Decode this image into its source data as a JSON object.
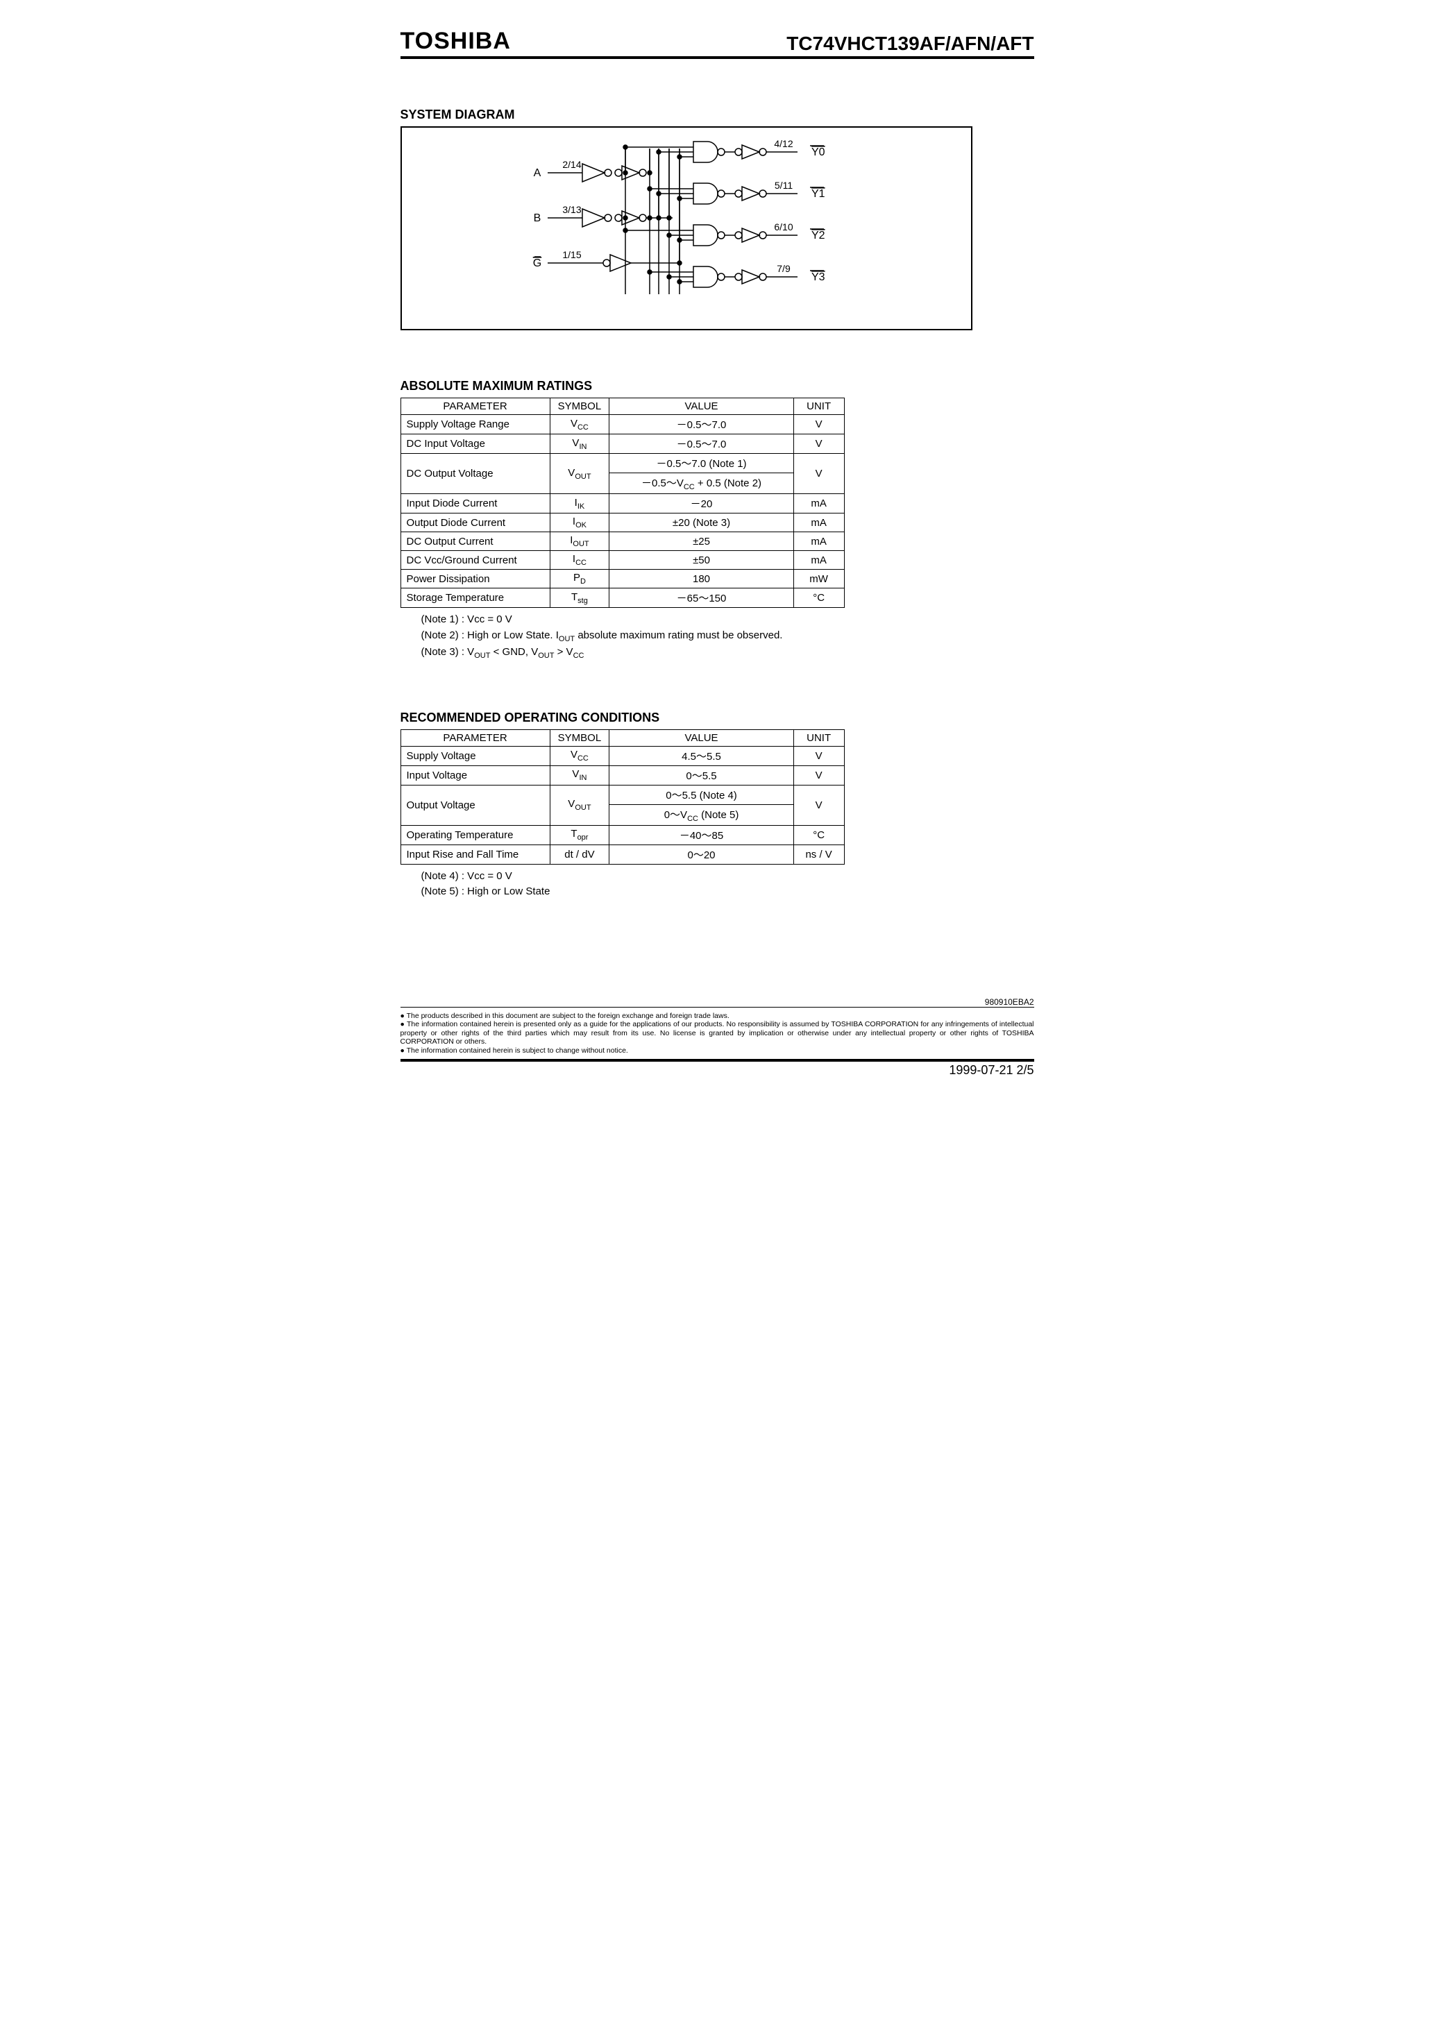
{
  "header": {
    "brand": "TOSHIBA",
    "part_number": "TC74VHCT139AF/AFN/AFT"
  },
  "diagram": {
    "title": "SYSTEM  DIAGRAM",
    "inputs": [
      {
        "label": "A",
        "pins": "2/14"
      },
      {
        "label": "B",
        "pins": "3/13"
      },
      {
        "label": "G",
        "overline": true,
        "pins": "1/15"
      }
    ],
    "outputs": [
      {
        "label": "Y0",
        "overline": true,
        "pins": "4/12"
      },
      {
        "label": "Y1",
        "overline": true,
        "pins": "5/11"
      },
      {
        "label": "Y2",
        "overline": true,
        "pins": "6/10"
      },
      {
        "label": "Y3",
        "overline": true,
        "pins": "7/9"
      }
    ]
  },
  "abs_max": {
    "title": "ABSOLUTE  MAXIMUM  RATINGS",
    "headers": {
      "parameter": "PARAMETER",
      "symbol": "SYMBOL",
      "value": "VALUE",
      "unit": "UNIT"
    },
    "rows": [
      {
        "param": "Supply Voltage Range",
        "sym": "V",
        "sub": "CC",
        "value": "－0.5～7.0",
        "unit": "V",
        "rowspan": 1
      },
      {
        "param": "DC Input Voltage",
        "sym": "V",
        "sub": "IN",
        "value": "－0.5～7.0",
        "unit": "V",
        "rowspan": 1
      },
      {
        "param": "DC Output Voltage",
        "sym": "V",
        "sub": "OUT",
        "values": [
          "－0.5～7.0 (Note  1)",
          "－0.5～VCC + 0.5 (Note  2)"
        ],
        "unit": "V",
        "rowspan": 2
      },
      {
        "param": "Input Diode Current",
        "sym": "I",
        "sub": "IK",
        "value": "－20",
        "unit": "mA",
        "rowspan": 1
      },
      {
        "param": "Output Diode Current",
        "sym": "I",
        "sub": "OK",
        "value": "±20         (Note  3)",
        "unit": "mA",
        "rowspan": 1
      },
      {
        "param": "DC Output Current",
        "sym": "I",
        "sub": "OUT",
        "value": "±25",
        "unit": "mA",
        "rowspan": 1
      },
      {
        "param": "DC Vcc/Ground Current",
        "sym": "I",
        "sub": "CC",
        "value": "±50",
        "unit": "mA",
        "rowspan": 1
      },
      {
        "param": "Power Dissipation",
        "sym": "P",
        "sub": "D",
        "value": "180",
        "unit": "mW",
        "rowspan": 1
      },
      {
        "param": "Storage Temperature",
        "sym": "T",
        "sub": "stg",
        "value": "－65～150",
        "unit": "°C",
        "rowspan": 1
      }
    ],
    "notes": [
      "(Note  1)  :  Vcc = 0 V",
      "(Note  2)  :  High  or  Low  State.  IOUT  absolute  maximum  rating  must  be  observed.",
      "(Note  3)  :  VOUT < GND, VOUT > VCC"
    ]
  },
  "rec_op": {
    "title": "RECOMMENDED  OPERATING  CONDITIONS",
    "rows": [
      {
        "param": "Supply Voltage",
        "sym": "V",
        "sub": "CC",
        "value": "4.5～5.5",
        "unit": "V",
        "rowspan": 1
      },
      {
        "param": "Input Voltage",
        "sym": "V",
        "sub": "IN",
        "value": "0～5.5",
        "unit": "V",
        "rowspan": 1
      },
      {
        "param": "Output Voltage",
        "sym": "V",
        "sub": "OUT",
        "values": [
          "0～5.5  (Note  4)",
          "0～VCC  (Note  5)"
        ],
        "unit": "V",
        "rowspan": 2
      },
      {
        "param": "Operating Temperature",
        "sym": "T",
        "sub": "opr",
        "value": "－40～85",
        "unit": "°C",
        "rowspan": 1
      },
      {
        "param": "Input Rise and Fall Time",
        "sym_full": "dt / dV",
        "value": "0～20",
        "unit": "ns / V",
        "rowspan": 1
      }
    ],
    "notes": [
      "(Note  4)  :  Vcc = 0 V",
      "(Note  5)  :  High  or  Low  State"
    ]
  },
  "footer": {
    "doc_code": "980910EBA2",
    "disclaimer": [
      "The products described in this document are subject to the foreign exchange and foreign trade laws.",
      "The information contained herein is presented only as a guide for the applications of our products. No responsibility is assumed by TOSHIBA CORPORATION for any infringements of intellectual property or other rights of the third parties which may result from its use. No license is granted by implication or otherwise under any intellectual property or other rights of TOSHIBA CORPORATION or others.",
      "The information contained herein is subject to change without notice."
    ],
    "date_page": "1999-07-21   2/5"
  },
  "style": {
    "border_color": "#000000",
    "background": "#ffffff",
    "text_color": "#000000",
    "diagram_line_width": 1.5
  }
}
